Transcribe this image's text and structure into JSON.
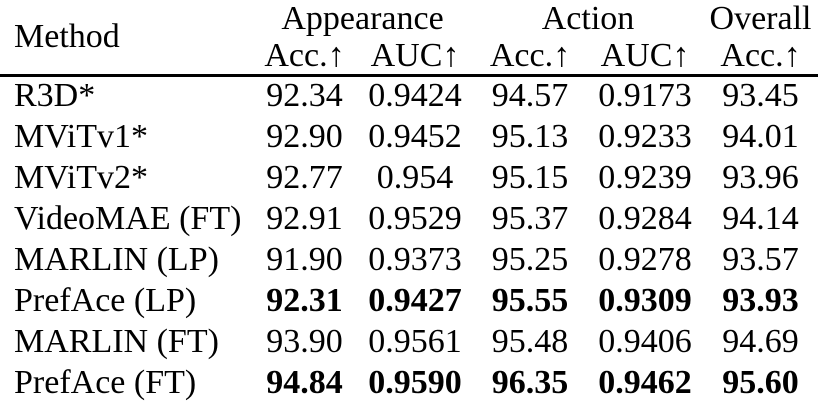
{
  "colors": {
    "text": "#000000",
    "background": "#ffffff",
    "rule": "#000000"
  },
  "table": {
    "method_header": "Method",
    "col_groups": [
      {
        "label": "Appearance",
        "span": 2
      },
      {
        "label": "Action",
        "span": 2
      },
      {
        "label": "Overall",
        "span": 1
      }
    ],
    "sub_headers": [
      "Acc.↑",
      "AUC↑",
      "Acc.↑",
      "AUC↑",
      "Acc.↑"
    ],
    "rows": [
      {
        "method": "R3D*",
        "bold_values": false,
        "values": [
          "92.34",
          "0.9424",
          "94.57",
          "0.9173",
          "93.45"
        ]
      },
      {
        "method": "MViTv1*",
        "bold_values": false,
        "values": [
          "92.90",
          "0.9452",
          "95.13",
          "0.9233",
          "94.01"
        ]
      },
      {
        "method": "MViTv2*",
        "bold_values": false,
        "values": [
          "92.77",
          "0.954",
          "95.15",
          "0.9239",
          "93.96"
        ]
      },
      {
        "method": "VideoMAE (FT)",
        "bold_values": false,
        "values": [
          "92.91",
          "0.9529",
          "95.37",
          "0.9284",
          "94.14"
        ]
      },
      {
        "method": "MARLIN (LP)",
        "bold_values": false,
        "values": [
          "91.90",
          "0.9373",
          "95.25",
          "0.9278",
          "93.57"
        ]
      },
      {
        "method": "PrefAce (LP)",
        "bold_values": true,
        "values": [
          "92.31",
          "0.9427",
          "95.55",
          "0.9309",
          "93.93"
        ]
      },
      {
        "method": "MARLIN (FT)",
        "bold_values": false,
        "values": [
          "93.90",
          "0.9561",
          "95.48",
          "0.9406",
          "94.69"
        ]
      },
      {
        "method": "PrefAce (FT)",
        "bold_values": true,
        "values": [
          "94.84",
          "0.9590",
          "96.35",
          "0.9462",
          "95.60"
        ]
      }
    ]
  }
}
